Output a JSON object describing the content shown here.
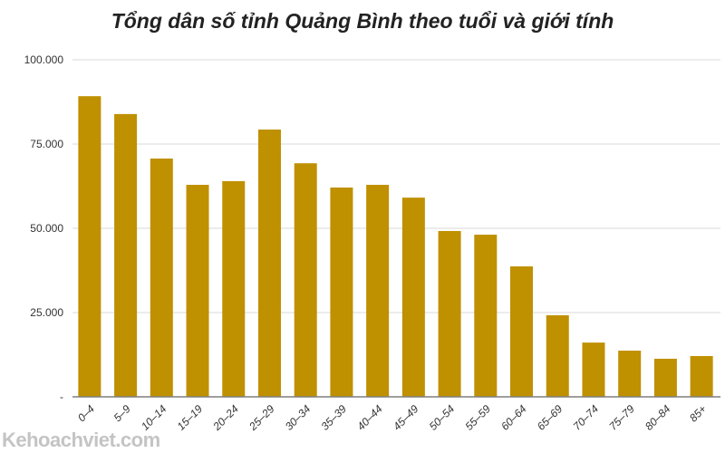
{
  "chart_data": {
    "type": "bar",
    "title": "Tổng dân số tỉnh Quảng Bình theo tuổi và giới tính",
    "xlabel": "",
    "ylabel": "",
    "categories": [
      "0–4",
      "5–9",
      "10–14",
      "15–19",
      "20–24",
      "25–29",
      "30–34",
      "35–39",
      "40–44",
      "45–49",
      "50–54",
      "55–59",
      "60–64",
      "65–69",
      "70–74",
      "75–79",
      "80–84",
      "85+"
    ],
    "values": [
      89200,
      83900,
      70700,
      62900,
      64000,
      79300,
      69300,
      62100,
      62900,
      59100,
      49200,
      48100,
      38700,
      24200,
      16100,
      13700,
      11300,
      12100
    ],
    "ylim": [
      0,
      100000
    ],
    "yticks": [
      {
        "value": 0,
        "label": "-"
      },
      {
        "value": 25000,
        "label": "25.000"
      },
      {
        "value": 50000,
        "label": "50.000"
      },
      {
        "value": 75000,
        "label": "75.000"
      },
      {
        "value": 100000,
        "label": "100.000"
      }
    ],
    "grid": true,
    "bar_color": "#bf9000"
  },
  "watermark": "Kehoachviet.com"
}
